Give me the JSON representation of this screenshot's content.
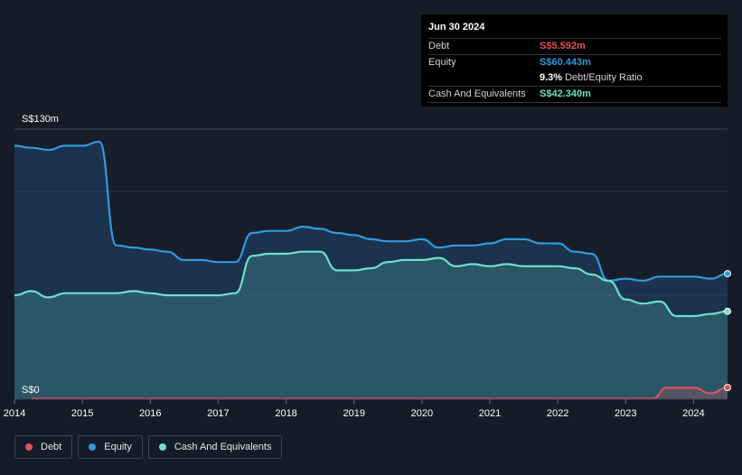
{
  "chart_data": {
    "type": "area",
    "y_top_label": "S$130m",
    "y_zero_label": "S$0",
    "ylim": [
      0,
      130
    ],
    "xlim": [
      2014.0,
      2024.5
    ],
    "x_ticks": [
      2014,
      2015,
      2016,
      2017,
      2018,
      2019,
      2020,
      2021,
      2022,
      2023,
      2024
    ],
    "x_tick_labels": [
      "2014",
      "2015",
      "2016",
      "2017",
      "2018",
      "2019",
      "2020",
      "2021",
      "2022",
      "2023",
      "2024"
    ],
    "series": [
      {
        "name": "Debt",
        "color": "#e0525a",
        "x": [
          2014.25,
          2015.0,
          2016.0,
          2017.0,
          2018.0,
          2019.0,
          2020.0,
          2021.0,
          2022.0,
          2023.0,
          2023.4,
          2023.6,
          2023.75,
          2024.0,
          2024.25,
          2024.5
        ],
        "values": [
          0.2,
          0.2,
          0.2,
          0.2,
          0.2,
          0.2,
          0.2,
          0.2,
          0.2,
          0.2,
          0.2,
          5.5,
          5.5,
          5.5,
          2.8,
          5.6
        ]
      },
      {
        "name": "Equity",
        "color": "#2f9ae0",
        "x": [
          2014.0,
          2014.25,
          2014.5,
          2014.75,
          2015.0,
          2015.25,
          2015.5,
          2015.75,
          2016.0,
          2016.25,
          2016.5,
          2016.75,
          2017.0,
          2017.25,
          2017.5,
          2017.75,
          2018.0,
          2018.25,
          2018.5,
          2018.75,
          2019.0,
          2019.25,
          2019.5,
          2019.75,
          2020.0,
          2020.25,
          2020.5,
          2020.75,
          2021.0,
          2021.25,
          2021.5,
          2021.75,
          2022.0,
          2022.25,
          2022.5,
          2022.75,
          2023.0,
          2023.25,
          2023.5,
          2023.75,
          2024.0,
          2024.25,
          2024.5
        ],
        "values": [
          122,
          121,
          120,
          122,
          122,
          124,
          74,
          73,
          72,
          71,
          67,
          67,
          66,
          66,
          80,
          81,
          81,
          83,
          82,
          80,
          79,
          77,
          76,
          76,
          77,
          73,
          74,
          74,
          75,
          77,
          77,
          75,
          75,
          71,
          70,
          57,
          58,
          57,
          59,
          59,
          59,
          58,
          60.4
        ]
      },
      {
        "name": "Cash And Equivalents",
        "color": "#6ee0c8",
        "x": [
          2014.0,
          2014.25,
          2014.5,
          2014.75,
          2015.0,
          2015.25,
          2015.5,
          2015.75,
          2016.0,
          2016.25,
          2016.5,
          2016.75,
          2017.0,
          2017.25,
          2017.5,
          2017.75,
          2018.0,
          2018.25,
          2018.5,
          2018.75,
          2019.0,
          2019.25,
          2019.5,
          2019.75,
          2020.0,
          2020.25,
          2020.5,
          2020.75,
          2021.0,
          2021.25,
          2021.5,
          2021.75,
          2022.0,
          2022.25,
          2022.5,
          2022.75,
          2023.0,
          2023.25,
          2023.5,
          2023.75,
          2024.0,
          2024.25,
          2024.5
        ],
        "values": [
          50,
          52,
          49,
          51,
          51,
          51,
          51,
          52,
          51,
          50,
          50,
          50,
          50,
          51,
          69,
          70,
          70,
          71,
          71,
          62,
          62,
          63,
          66,
          67,
          67,
          68,
          64,
          65,
          64,
          65,
          64,
          64,
          64,
          63,
          60,
          57,
          48,
          46,
          47,
          40,
          40,
          41,
          42.3
        ]
      }
    ]
  },
  "tooltip": {
    "date": "Jun 30 2024",
    "debt_label": "Debt",
    "debt_value": "S$5.592m",
    "equity_label": "Equity",
    "equity_value": "S$60.443m",
    "ratio_value": "9.3%",
    "ratio_label": "Debt/Equity Ratio",
    "cash_label": "Cash And Equivalents",
    "cash_value": "S$42.340m"
  },
  "legend": {
    "debt": "Debt",
    "equity": "Equity",
    "cash": "Cash And Equivalents"
  },
  "colors": {
    "debt": "#e0525a",
    "equity": "#2f9ae0",
    "cash": "#6ee0c8"
  }
}
